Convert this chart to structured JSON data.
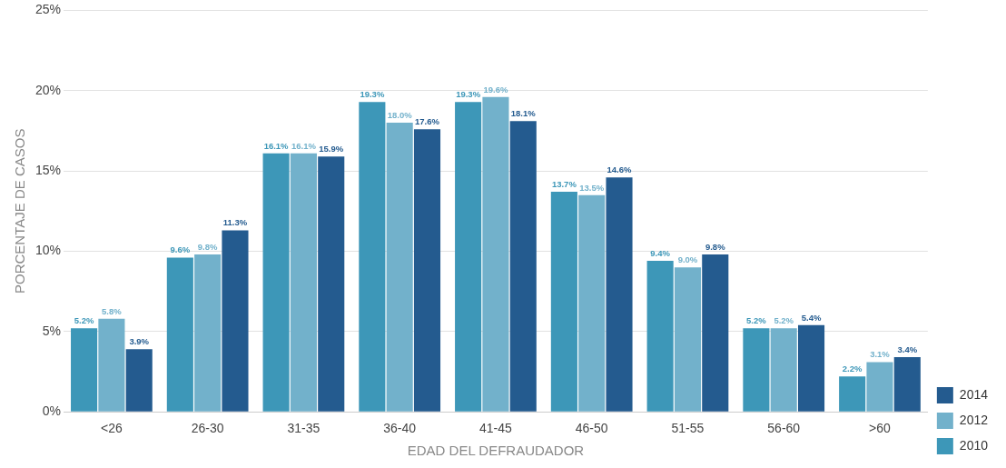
{
  "chart_data": {
    "type": "bar",
    "xlabel": "EDAD DEL DEFRAUDADOR",
    "ylabel": "PORCENTAJE DE CASOS",
    "categories": [
      "<26",
      "26-30",
      "31-35",
      "36-40",
      "41-45",
      "46-50",
      "51-55",
      "56-60",
      ">60"
    ],
    "series": [
      {
        "name": "2010",
        "color": "#3d97b8",
        "values": [
          5.2,
          9.6,
          16.1,
          19.3,
          19.3,
          13.7,
          9.4,
          5.2,
          2.2
        ],
        "value_labels": [
          "5.2%",
          "9.6%",
          "16.1%",
          "19.3%",
          "19.3%",
          "13.7%",
          "9.4%",
          "5.2%",
          "2.2%"
        ]
      },
      {
        "name": "2012",
        "color": "#72b1cb",
        "values": [
          5.8,
          9.8,
          16.1,
          18.0,
          19.6,
          13.5,
          9.0,
          5.2,
          3.1
        ],
        "value_labels": [
          "5.8%",
          "9.8%",
          "16.1%",
          "18.0%",
          "19.6%",
          "13.5%",
          "9.0%",
          "5.2%",
          "3.1%"
        ]
      },
      {
        "name": "2014",
        "color": "#245b8f",
        "values": [
          3.9,
          11.3,
          15.9,
          17.6,
          18.1,
          14.6,
          9.8,
          5.4,
          3.4
        ],
        "value_labels": [
          "3.9%",
          "11.3%",
          "15.9%",
          "17.6%",
          "18.1%",
          "14.6%",
          "9.8%",
          "5.4%",
          "3.4%"
        ]
      }
    ],
    "ylim": [
      0,
      25
    ],
    "yticks": [
      {
        "value": 0,
        "label": "0%"
      },
      {
        "value": 5,
        "label": "5%"
      },
      {
        "value": 10,
        "label": "10%"
      },
      {
        "value": 15,
        "label": "15%"
      },
      {
        "value": 20,
        "label": "20%"
      },
      {
        "value": 25,
        "label": "25%"
      }
    ],
    "grid": "y",
    "legend": "bottom right"
  }
}
